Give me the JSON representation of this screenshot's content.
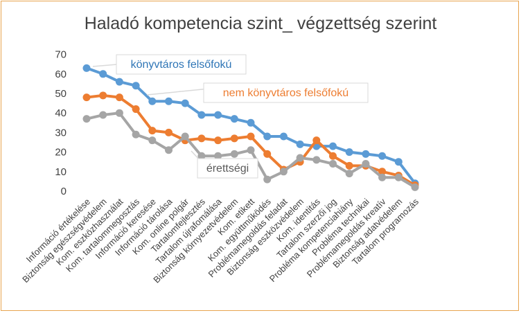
{
  "chart_data": {
    "type": "line",
    "title": "Haladó kompetencia szint_ végzettség szerint",
    "xlabel": "",
    "ylabel": "",
    "ylim": [
      0,
      70
    ],
    "yticks": [
      0,
      10,
      20,
      30,
      40,
      50,
      60,
      70
    ],
    "grid": false,
    "categories": [
      "Információ értékelése",
      "Biztonság egészségvédelem",
      "Kom. eszközhasználat",
      "Kom. tartalommegosztás",
      "Információ keresése",
      "Információ tárolása",
      "Kom. online polgár",
      "Tartalomfejlesztés",
      "Tartalom újrafomálása",
      "Biztonság környezetvédelem",
      "Kom. etikett",
      "Kom. együttműködés",
      "Problémamegoldás feladat",
      "Biztonság eszközvédelem",
      "Kom. identitás",
      "Tartalom szerzői jog",
      "Probléma kompetenciahiány",
      "Probléma technikai",
      "Problémamegoldás kreatív",
      "Biztonság adatvédelem",
      "Tartalom programozás"
    ],
    "series": [
      {
        "name": "könyvtáros felsőfokú",
        "color": "#5b9bd5",
        "values": [
          63,
          60,
          56,
          54,
          46,
          46,
          45,
          39,
          39,
          37,
          35,
          28,
          28,
          24,
          23,
          23,
          20,
          19,
          18,
          15,
          4
        ]
      },
      {
        "name": "nem könyvtáros felsőfokú",
        "color": "#ed7d31",
        "values": [
          48,
          49,
          48,
          42,
          31,
          30,
          26,
          27,
          26,
          27,
          28,
          19,
          11,
          15,
          26,
          18,
          13,
          13,
          10,
          8,
          3
        ]
      },
      {
        "name": "érettségi",
        "color": "#a5a5a5",
        "values": [
          37,
          39,
          40,
          29,
          26,
          21,
          28,
          18,
          18,
          19,
          21,
          6,
          10,
          17,
          16,
          14,
          9,
          14,
          7,
          7,
          2
        ]
      }
    ]
  }
}
